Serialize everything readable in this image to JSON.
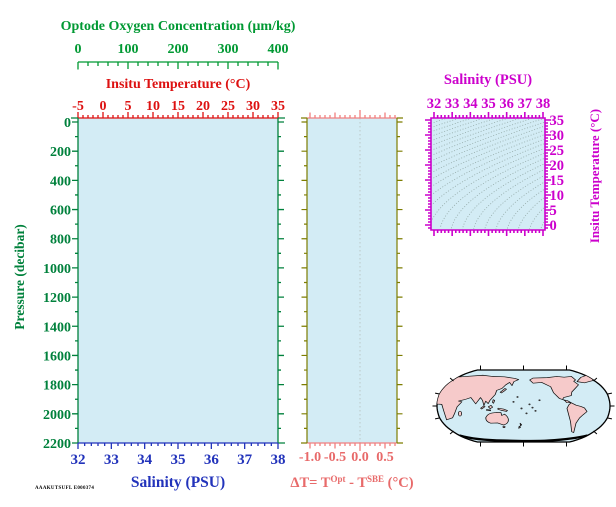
{
  "figure": {
    "background": "#ffffff",
    "plot_fill": "#d3ecf5"
  },
  "chart_data": [
    {
      "type": "line",
      "name": "main-profile-frame",
      "description": "Empty depth-profile frame (no data series plotted)",
      "axes": {
        "top_outer": {
          "label": "Optode Oxygen Concentration (µm/kg)",
          "ticks": [
            0,
            100,
            200,
            300,
            400
          ],
          "range": [
            0,
            400
          ],
          "minor_step": 20,
          "color": "#009933"
        },
        "top_inner": {
          "label": "Insitu Temperature (°C)",
          "ticks": [
            -5,
            0,
            5,
            10,
            15,
            20,
            25,
            30,
            35
          ],
          "range": [
            -5,
            35
          ],
          "minor_step": 1,
          "color": "#dd1111"
        },
        "left": {
          "label": "Pressure (decibar)",
          "ticks": [
            0,
            200,
            400,
            600,
            800,
            1000,
            1200,
            1400,
            1600,
            1800,
            2000,
            2200
          ],
          "range": [
            0,
            2200
          ],
          "minor_step": 100,
          "color": "#00813c"
        },
        "bottom": {
          "label": "Salinity (PSU)",
          "ticks": [
            32,
            33,
            34,
            35,
            36,
            37,
            38
          ],
          "range": [
            32,
            38
          ],
          "minor_step": 0.2,
          "color": "#2233bb"
        }
      }
    },
    {
      "type": "line",
      "name": "delta-t-frame",
      "description": "Empty ΔT profile frame with zero reference line",
      "axes": {
        "bottom": {
          "label": "ΔT= TOpt - TSBE (°C)",
          "label_parts": {
            "prefix": "ΔT= T",
            "sup1": "Opt",
            "mid": " - T",
            "sup2": "SBE",
            "suffix": " (°C)"
          },
          "tick_labels": [
            "-1.0",
            "-0.5",
            "0.0",
            "0.5"
          ],
          "ticks": [
            -1.0,
            -0.5,
            0.0,
            0.5
          ],
          "range": [
            -1.06,
            0.74
          ],
          "minor_step": 0.1,
          "line_color": "#f08080",
          "text_color": "#e86a6a"
        },
        "sides": {
          "color": "#7d7d00",
          "major_step": 200,
          "minor_step": 100
        }
      },
      "zero_line": {
        "x": 0.0,
        "style": "dotted",
        "color": "#b9c4c4"
      }
    },
    {
      "type": "scatter",
      "name": "ts-diagram",
      "description": "T-S diagram frame with isopycnal contours (no data plotted)",
      "axes": {
        "top": {
          "label": "Salinity (PSU)",
          "ticks": [
            32,
            33,
            34,
            35,
            36,
            37,
            38
          ],
          "range": [
            31.84,
            38.11
          ],
          "minor_step": 0.2,
          "color": "#cc00cc"
        },
        "right": {
          "label": "Insitu Temperature (°C)",
          "ticks": [
            0,
            5,
            10,
            15,
            20,
            25,
            30,
            35
          ],
          "range": [
            -1.67,
            35.67
          ],
          "minor_step": 1,
          "color": "#cc00cc"
        }
      },
      "isopycnals": {
        "sigma_t_min": 18,
        "sigma_t_max": 30.5,
        "step": 0.5,
        "color": "#93a9a7"
      }
    },
    {
      "type": "map",
      "name": "world-map-inset",
      "projection": "oval world map, Pacific-centered",
      "land_color": "#f6caca",
      "ocean_color": "#d3ecf5",
      "outline_color": "#000000"
    }
  ],
  "footer": {
    "stamp": "AAAKUTSUFL E000374"
  }
}
